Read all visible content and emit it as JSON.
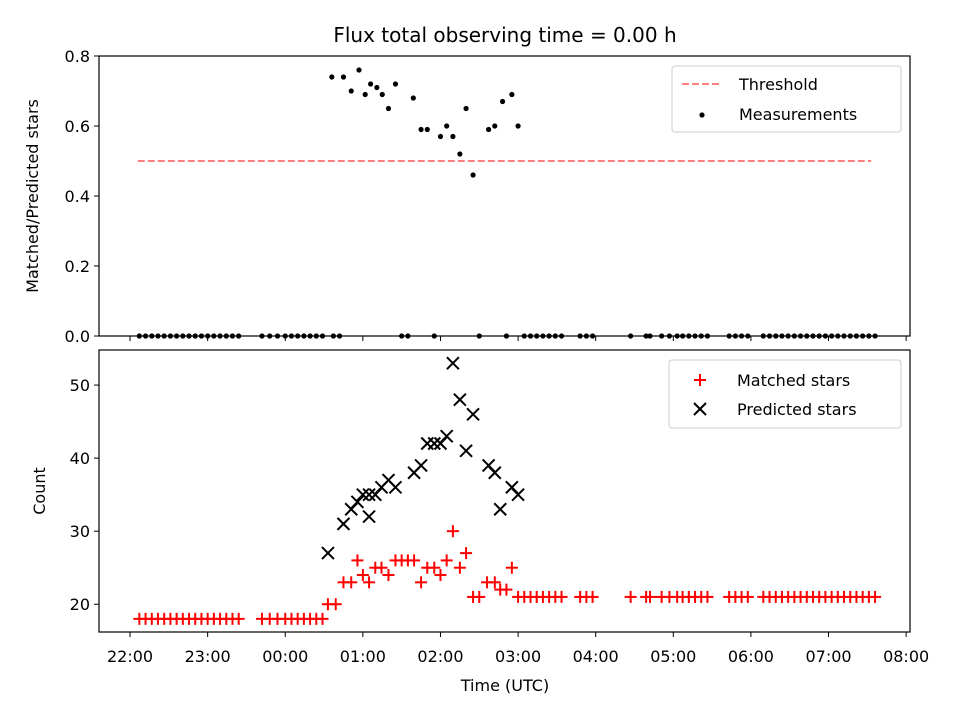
{
  "chart_data": [
    {
      "type": "scatter",
      "title": "Flux total observing time = 0.00 h",
      "xlabel": "",
      "ylabel": "Matched/Predicted stars",
      "ylim": [
        0,
        0.8
      ],
      "yticks": [
        "0.0",
        "0.2",
        "0.4",
        "0.6",
        "0.8"
      ],
      "x_unit": "hours since 22:00 UTC",
      "legend_position": "top-right",
      "threshold": {
        "name": "Threshold",
        "value": 0.5,
        "x_range": [
          0.1,
          9.55
        ],
        "color": "#ff7f7f"
      },
      "series": [
        {
          "name": "Measurements",
          "color": "#000000",
          "points": [
            [
              0.12,
              0
            ],
            [
              0.2,
              0
            ],
            [
              0.28,
              0
            ],
            [
              0.36,
              0
            ],
            [
              0.44,
              0
            ],
            [
              0.52,
              0
            ],
            [
              0.6,
              0
            ],
            [
              0.68,
              0
            ],
            [
              0.76,
              0
            ],
            [
              0.84,
              0
            ],
            [
              0.92,
              0
            ],
            [
              1.0,
              0
            ],
            [
              1.08,
              0
            ],
            [
              1.16,
              0
            ],
            [
              1.24,
              0
            ],
            [
              1.32,
              0
            ],
            [
              1.4,
              0
            ],
            [
              1.7,
              0
            ],
            [
              1.8,
              0
            ],
            [
              1.9,
              0
            ],
            [
              2.0,
              0
            ],
            [
              2.08,
              0
            ],
            [
              2.16,
              0
            ],
            [
              2.24,
              0
            ],
            [
              2.32,
              0
            ],
            [
              2.4,
              0
            ],
            [
              2.48,
              0
            ],
            [
              2.6,
              0.74
            ],
            [
              2.75,
              0.74
            ],
            [
              2.85,
              0.7
            ],
            [
              2.95,
              0.76
            ],
            [
              3.03,
              0.69
            ],
            [
              3.1,
              0.72
            ],
            [
              3.18,
              0.71
            ],
            [
              3.25,
              0.69
            ],
            [
              3.33,
              0.65
            ],
            [
              3.42,
              0.72
            ],
            [
              3.65,
              0.68
            ],
            [
              3.75,
              0.59
            ],
            [
              3.83,
              0.59
            ],
            [
              4.0,
              0.57
            ],
            [
              4.08,
              0.6
            ],
            [
              4.16,
              0.57
            ],
            [
              4.25,
              0.52
            ],
            [
              4.33,
              0.65
            ],
            [
              4.42,
              0.46
            ],
            [
              4.62,
              0.59
            ],
            [
              4.7,
              0.6
            ],
            [
              4.8,
              0.67
            ],
            [
              4.92,
              0.69
            ],
            [
              5.0,
              0.6
            ],
            [
              2.62,
              0
            ],
            [
              2.7,
              0
            ],
            [
              3.5,
              0
            ],
            [
              3.58,
              0
            ],
            [
              3.92,
              0
            ],
            [
              4.5,
              0
            ],
            [
              4.85,
              0
            ],
            [
              5.08,
              0
            ],
            [
              5.16,
              0
            ],
            [
              5.24,
              0
            ],
            [
              5.32,
              0
            ],
            [
              5.4,
              0
            ],
            [
              5.48,
              0
            ],
            [
              5.56,
              0
            ],
            [
              5.8,
              0
            ],
            [
              5.88,
              0
            ],
            [
              5.96,
              0
            ],
            [
              6.45,
              0
            ],
            [
              6.65,
              0
            ],
            [
              6.7,
              0
            ],
            [
              6.85,
              0
            ],
            [
              6.95,
              0
            ],
            [
              7.05,
              0
            ],
            [
              7.12,
              0
            ],
            [
              7.2,
              0
            ],
            [
              7.28,
              0
            ],
            [
              7.36,
              0
            ],
            [
              7.44,
              0
            ],
            [
              7.72,
              0
            ],
            [
              7.8,
              0
            ],
            [
              7.88,
              0
            ],
            [
              7.96,
              0
            ],
            [
              8.16,
              0
            ],
            [
              8.24,
              0
            ],
            [
              8.32,
              0
            ],
            [
              8.4,
              0
            ],
            [
              8.48,
              0
            ],
            [
              8.56,
              0
            ],
            [
              8.64,
              0
            ],
            [
              8.72,
              0
            ],
            [
              8.8,
              0
            ],
            [
              8.88,
              0
            ],
            [
              8.96,
              0
            ],
            [
              9.04,
              0
            ],
            [
              9.12,
              0
            ],
            [
              9.2,
              0
            ],
            [
              9.28,
              0
            ],
            [
              9.36,
              0
            ],
            [
              9.44,
              0
            ],
            [
              9.52,
              0
            ],
            [
              9.6,
              0
            ]
          ]
        }
      ]
    },
    {
      "type": "scatter",
      "title": "",
      "xlabel": "Time (UTC)",
      "ylabel": "Count",
      "ylim": [
        16.2,
        54.8
      ],
      "yticks": [
        "20",
        "30",
        "40",
        "50"
      ],
      "x_unit": "hours since 22:00 UTC",
      "xlim": [
        -0.4,
        10.05
      ],
      "xticks": [
        "22:00",
        "23:00",
        "00:00",
        "01:00",
        "02:00",
        "03:00",
        "04:00",
        "05:00",
        "06:00",
        "07:00",
        "08:00"
      ],
      "legend_position": "top-right",
      "series": [
        {
          "name": "Matched stars",
          "marker": "plus",
          "color": "#ff0000",
          "points": [
            [
              0.12,
              18
            ],
            [
              0.2,
              18
            ],
            [
              0.28,
              18
            ],
            [
              0.36,
              18
            ],
            [
              0.44,
              18
            ],
            [
              0.52,
              18
            ],
            [
              0.6,
              18
            ],
            [
              0.68,
              18
            ],
            [
              0.76,
              18
            ],
            [
              0.84,
              18
            ],
            [
              0.92,
              18
            ],
            [
              1.0,
              18
            ],
            [
              1.08,
              18
            ],
            [
              1.16,
              18
            ],
            [
              1.24,
              18
            ],
            [
              1.32,
              18
            ],
            [
              1.4,
              18
            ],
            [
              1.7,
              18
            ],
            [
              1.8,
              18
            ],
            [
              1.9,
              18
            ],
            [
              2.0,
              18
            ],
            [
              2.08,
              18
            ],
            [
              2.16,
              18
            ],
            [
              2.24,
              18
            ],
            [
              2.32,
              18
            ],
            [
              2.4,
              18
            ],
            [
              2.48,
              18
            ],
            [
              2.55,
              20
            ],
            [
              2.65,
              20
            ],
            [
              2.75,
              23
            ],
            [
              2.85,
              23
            ],
            [
              2.93,
              26
            ],
            [
              3.0,
              24
            ],
            [
              3.08,
              23
            ],
            [
              3.16,
              25
            ],
            [
              3.24,
              25
            ],
            [
              3.33,
              24
            ],
            [
              3.42,
              26
            ],
            [
              3.5,
              26
            ],
            [
              3.58,
              26
            ],
            [
              3.66,
              26
            ],
            [
              3.75,
              23
            ],
            [
              3.83,
              25
            ],
            [
              3.92,
              25
            ],
            [
              4.0,
              24
            ],
            [
              4.08,
              26
            ],
            [
              4.16,
              30
            ],
            [
              4.25,
              25
            ],
            [
              4.33,
              27
            ],
            [
              4.42,
              21
            ],
            [
              4.5,
              21
            ],
            [
              4.6,
              23
            ],
            [
              4.7,
              23
            ],
            [
              4.77,
              22
            ],
            [
              4.85,
              22
            ],
            [
              4.92,
              25
            ],
            [
              5.0,
              21
            ],
            [
              5.08,
              21
            ],
            [
              5.16,
              21
            ],
            [
              5.24,
              21
            ],
            [
              5.32,
              21
            ],
            [
              5.4,
              21
            ],
            [
              5.48,
              21
            ],
            [
              5.56,
              21
            ],
            [
              5.8,
              21
            ],
            [
              5.88,
              21
            ],
            [
              5.96,
              21
            ],
            [
              6.45,
              21
            ],
            [
              6.65,
              21
            ],
            [
              6.7,
              21
            ],
            [
              6.85,
              21
            ],
            [
              6.95,
              21
            ],
            [
              7.05,
              21
            ],
            [
              7.12,
              21
            ],
            [
              7.2,
              21
            ],
            [
              7.28,
              21
            ],
            [
              7.36,
              21
            ],
            [
              7.44,
              21
            ],
            [
              7.72,
              21
            ],
            [
              7.8,
              21
            ],
            [
              7.88,
              21
            ],
            [
              7.96,
              21
            ],
            [
              8.16,
              21
            ],
            [
              8.24,
              21
            ],
            [
              8.32,
              21
            ],
            [
              8.4,
              21
            ],
            [
              8.48,
              21
            ],
            [
              8.56,
              21
            ],
            [
              8.64,
              21
            ],
            [
              8.72,
              21
            ],
            [
              8.8,
              21
            ],
            [
              8.88,
              21
            ],
            [
              8.96,
              21
            ],
            [
              9.04,
              21
            ],
            [
              9.12,
              21
            ],
            [
              9.2,
              21
            ],
            [
              9.28,
              21
            ],
            [
              9.36,
              21
            ],
            [
              9.44,
              21
            ],
            [
              9.52,
              21
            ],
            [
              9.6,
              21
            ]
          ]
        },
        {
          "name": "Predicted stars",
          "marker": "x",
          "color": "#000000",
          "points": [
            [
              2.55,
              27
            ],
            [
              2.75,
              31
            ],
            [
              2.85,
              33
            ],
            [
              2.93,
              34
            ],
            [
              3.0,
              35
            ],
            [
              3.08,
              32
            ],
            [
              3.08,
              35
            ],
            [
              3.16,
              35
            ],
            [
              3.24,
              36
            ],
            [
              3.33,
              37
            ],
            [
              3.42,
              36
            ],
            [
              3.66,
              38
            ],
            [
              3.75,
              39
            ],
            [
              3.83,
              42
            ],
            [
              3.92,
              42
            ],
            [
              4.0,
              42
            ],
            [
              4.08,
              43
            ],
            [
              4.16,
              53
            ],
            [
              4.25,
              48
            ],
            [
              4.33,
              41
            ],
            [
              4.42,
              46
            ],
            [
              4.62,
              39
            ],
            [
              4.7,
              38
            ],
            [
              4.77,
              33
            ],
            [
              4.92,
              36
            ],
            [
              5.0,
              35
            ]
          ]
        }
      ]
    }
  ]
}
